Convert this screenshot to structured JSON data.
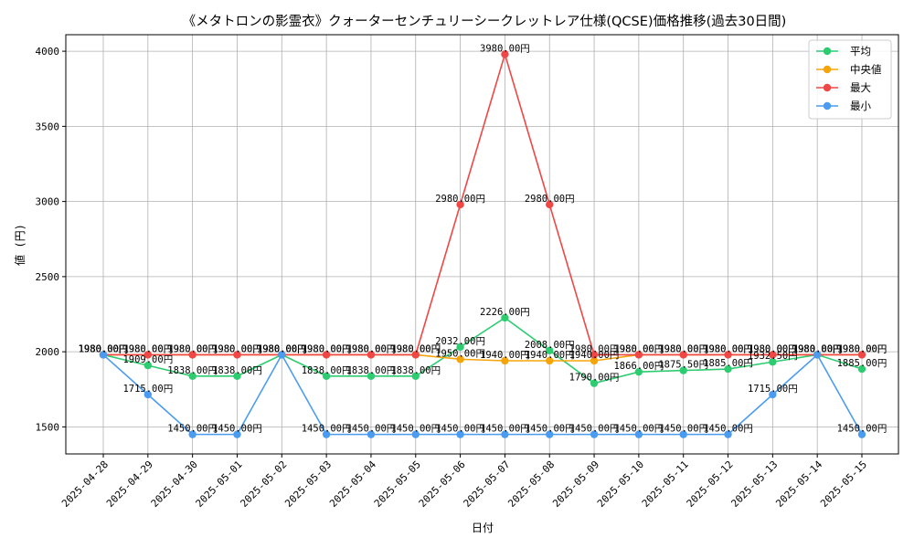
{
  "chart_data": {
    "type": "line",
    "title": "《メタトロンの影霊衣》クォーターセンチュリーシークレットレア仕様(QCSE)価格推移(過去30日間)",
    "xlabel": "日付",
    "ylabel": "値 (円)",
    "ylim": [
      1320,
      4110
    ],
    "yticks": [
      1500,
      2000,
      2500,
      3000,
      3500,
      4000
    ],
    "grid": true,
    "legend_position": "top-right",
    "label_suffix": "円",
    "categories": [
      "2025-04-28",
      "2025-04-29",
      "2025-04-30",
      "2025-05-01",
      "2025-05-02",
      "2025-05-03",
      "2025-05-04",
      "2025-05-05",
      "2025-05-06",
      "2025-05-07",
      "2025-05-08",
      "2025-05-09",
      "2025-05-10",
      "2025-05-11",
      "2025-05-12",
      "2025-05-13",
      "2025-05-14",
      "2025-05-15"
    ],
    "series": [
      {
        "name": "平均",
        "color": "#2ecc71",
        "values": [
          1980,
          1909,
          1838,
          1838,
          1980,
          1838,
          1838,
          1838,
          2032,
          2226,
          2008,
          1790,
          1866,
          1875.5,
          1885,
          1932.5,
          1980,
          1885
        ]
      },
      {
        "name": "中央値",
        "color": "#f5a50a",
        "values": [
          1980,
          1980,
          1980,
          1980,
          1980,
          1980,
          1980,
          1980,
          1950,
          1940,
          1940,
          1940,
          1980,
          1980,
          1980,
          1980,
          1980,
          1980
        ]
      },
      {
        "name": "最大",
        "color": "#f04646",
        "values": [
          1980,
          1980,
          1980,
          1980,
          1980,
          1980,
          1980,
          1980,
          2980,
          3980,
          2980,
          1980,
          1980,
          1980,
          1980,
          1980,
          1980,
          1980
        ]
      },
      {
        "name": "最小",
        "color": "#4b9cf0",
        "values": [
          1980,
          1715,
          1450,
          1450,
          1980,
          1450,
          1450,
          1450,
          1450,
          1450,
          1450,
          1450,
          1450,
          1450,
          1450,
          1715,
          1980,
          1450
        ]
      }
    ]
  }
}
